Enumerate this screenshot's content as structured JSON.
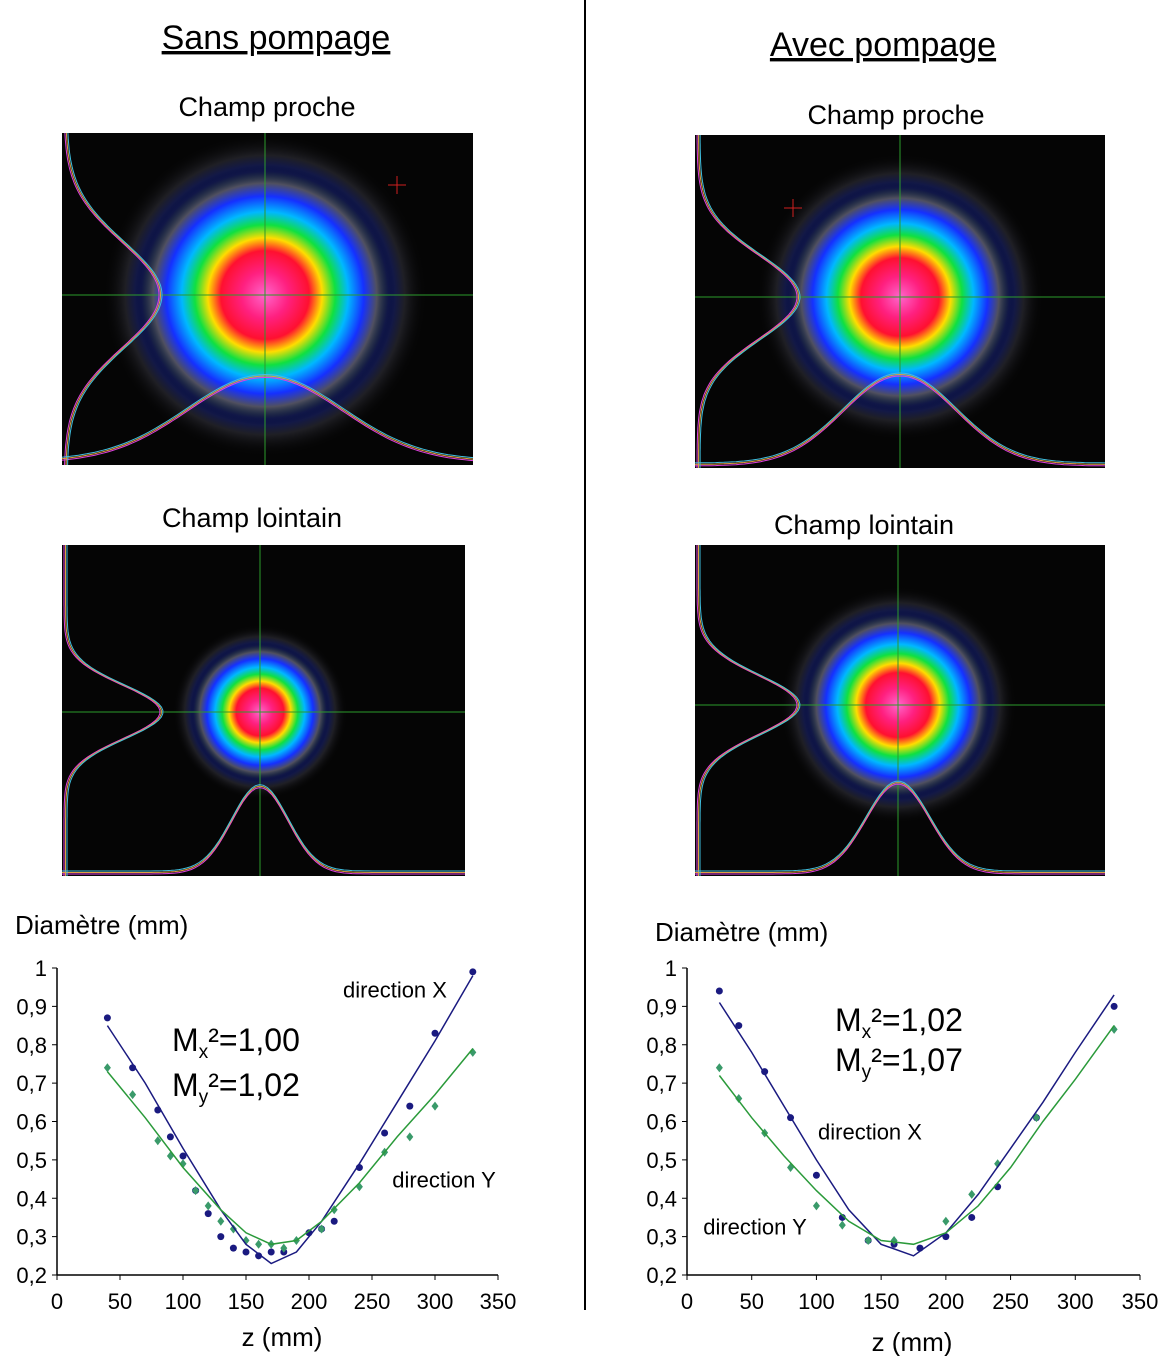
{
  "columns": [
    {
      "heading": "Sans pompage",
      "near_field": "Champ proche",
      "far_field": "Champ lointain"
    },
    {
      "heading": "Avec pompage",
      "near_field": "Champ proche",
      "far_field": "Champ lointain"
    }
  ],
  "chart_data": [
    {
      "type": "scatter",
      "y_label": "Diamètre (mm)",
      "x_label": "z (mm)",
      "xlim": [
        0,
        350
      ],
      "xticks": [
        0,
        50,
        100,
        150,
        200,
        250,
        300,
        350
      ],
      "ylim": [
        0.2,
        1
      ],
      "yticks": [
        {
          "value": 0.2,
          "label": "0,2"
        },
        {
          "value": 0.3,
          "label": "0,3"
        },
        {
          "value": 0.4,
          "label": "0,4"
        },
        {
          "value": 0.5,
          "label": "0,5"
        },
        {
          "value": 0.6,
          "label": "0,6"
        },
        {
          "value": 0.7,
          "label": "0,7"
        },
        {
          "value": 0.8,
          "label": "0,8"
        },
        {
          "value": 0.9,
          "label": "0,9"
        },
        1
      ],
      "annotations": [
        {
          "text": "direction X"
        },
        {
          "main": "M",
          "sub": "x",
          "after": "²=1,00"
        },
        {
          "main": "M",
          "sub": "y",
          "after": "²=1,02"
        },
        {
          "text": "direction Y"
        }
      ],
      "series": [
        {
          "color": "#1a1a80",
          "marker": "circle",
          "x": [
            40,
            60,
            80,
            90,
            100,
            110,
            120,
            130,
            140,
            150,
            160,
            170,
            180,
            200,
            210,
            220,
            240,
            260,
            280,
            300,
            330
          ],
          "values": [
            0.87,
            0.74,
            0.63,
            0.56,
            0.51,
            0.42,
            0.36,
            0.3,
            0.27,
            0.26,
            0.25,
            0.26,
            0.26,
            0.31,
            0.32,
            0.34,
            0.48,
            0.57,
            0.64,
            0.83,
            0.99
          ]
        },
        {
          "color": "#3a9a6a",
          "marker": "diamond",
          "x": [
            40,
            60,
            80,
            90,
            100,
            110,
            120,
            130,
            140,
            150,
            160,
            170,
            180,
            190,
            210,
            220,
            240,
            260,
            280,
            300,
            330
          ],
          "values": [
            0.74,
            0.67,
            0.55,
            0.51,
            0.49,
            0.42,
            0.38,
            0.34,
            0.32,
            0.29,
            0.28,
            0.28,
            0.27,
            0.29,
            0.32,
            0.37,
            0.43,
            0.52,
            0.56,
            0.64,
            0.78
          ]
        },
        {
          "color": "#1a1a80",
          "marker": "line",
          "x": [
            40,
            70,
            100,
            130,
            150,
            170,
            190,
            210,
            240,
            270,
            300,
            330
          ],
          "values": [
            0.85,
            0.7,
            0.53,
            0.37,
            0.28,
            0.23,
            0.26,
            0.34,
            0.49,
            0.65,
            0.81,
            0.98
          ]
        },
        {
          "color": "#2a9a3a",
          "marker": "line",
          "x": [
            40,
            70,
            100,
            130,
            150,
            170,
            190,
            210,
            240,
            270,
            300,
            330
          ],
          "values": [
            0.73,
            0.61,
            0.48,
            0.37,
            0.31,
            0.28,
            0.29,
            0.34,
            0.44,
            0.56,
            0.67,
            0.79
          ]
        }
      ]
    },
    {
      "type": "scatter",
      "y_label": "Diamètre (mm)",
      "x_label": "z (mm)",
      "xlim": [
        0,
        350
      ],
      "xticks": [
        0,
        50,
        100,
        150,
        200,
        250,
        300,
        350
      ],
      "ylim": [
        0.2,
        1
      ],
      "yticks": [
        {
          "value": 0.2,
          "label": "0,2"
        },
        {
          "value": 0.3,
          "label": "0,3"
        },
        {
          "value": 0.4,
          "label": "0,4"
        },
        {
          "value": 0.5,
          "label": "0,5"
        },
        {
          "value": 0.6,
          "label": "0,6"
        },
        {
          "value": 0.7,
          "label": "0,7"
        },
        {
          "value": 0.8,
          "label": "0,8"
        },
        {
          "value": 0.9,
          "label": "0,9"
        },
        1
      ],
      "annotations": [
        {
          "main": "M",
          "sub": "x",
          "after": "²=1,02"
        },
        {
          "main": "M",
          "sub": "y",
          "after": "²=1,07"
        },
        {
          "text": "direction X"
        },
        {
          "text": "direction Y"
        }
      ],
      "series": [
        {
          "color": "#1a1a80",
          "marker": "circle",
          "x": [
            25,
            40,
            60,
            80,
            100,
            120,
            140,
            160,
            180,
            200,
            220,
            240,
            270,
            330
          ],
          "values": [
            0.94,
            0.85,
            0.73,
            0.61,
            0.46,
            0.35,
            0.29,
            0.28,
            0.27,
            0.3,
            0.35,
            0.43,
            0.61,
            0.9
          ]
        },
        {
          "color": "#3a9a6a",
          "marker": "diamond",
          "x": [
            25,
            40,
            60,
            80,
            100,
            120,
            140,
            160,
            200,
            220,
            240,
            270,
            330
          ],
          "values": [
            0.74,
            0.66,
            0.57,
            0.48,
            0.38,
            0.33,
            0.29,
            0.29,
            0.34,
            0.41,
            0.49,
            0.61,
            0.84
          ]
        },
        {
          "color": "#1a1a80",
          "marker": "line",
          "x": [
            25,
            50,
            75,
            100,
            125,
            150,
            175,
            200,
            225,
            250,
            275,
            300,
            330
          ],
          "values": [
            0.91,
            0.78,
            0.64,
            0.5,
            0.37,
            0.28,
            0.25,
            0.31,
            0.41,
            0.53,
            0.65,
            0.78,
            0.93
          ]
        },
        {
          "color": "#2a9a3a",
          "marker": "line",
          "x": [
            25,
            50,
            75,
            100,
            125,
            150,
            175,
            200,
            225,
            250,
            275,
            300,
            330
          ],
          "values": [
            0.72,
            0.61,
            0.51,
            0.42,
            0.34,
            0.29,
            0.28,
            0.31,
            0.38,
            0.48,
            0.6,
            0.71,
            0.85
          ]
        }
      ]
    }
  ]
}
